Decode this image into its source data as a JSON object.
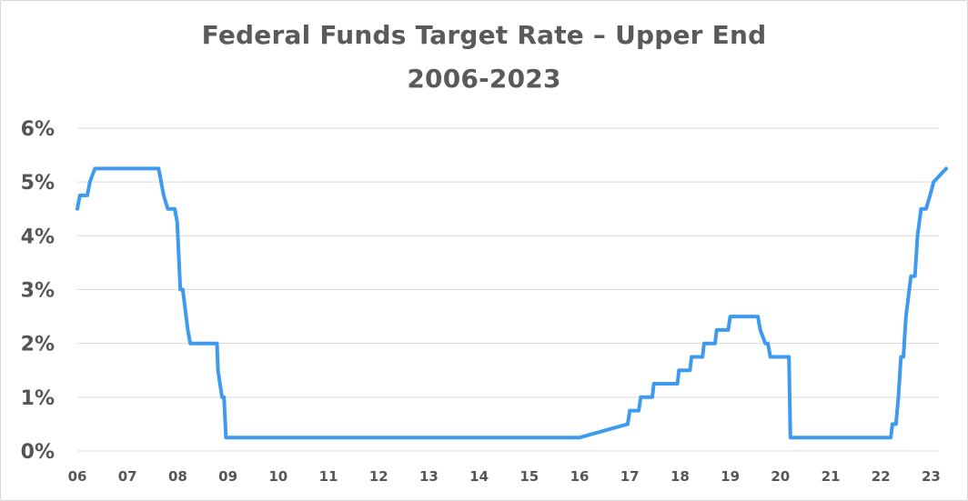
{
  "chart_data": {
    "type": "line",
    "title": "Federal Funds Target Rate – Upper End",
    "subtitle": "2006-2023",
    "xlabel": "",
    "ylabel": "",
    "ylim": [
      0,
      6
    ],
    "xlim": [
      2006,
      2023.4
    ],
    "grid": true,
    "legend": "none",
    "line_color": "#3d9aef",
    "y_ticks": [
      "0%",
      "1%",
      "2%",
      "3%",
      "4%",
      "5%",
      "6%"
    ],
    "x_ticks": [
      "06",
      "07",
      "08",
      "09",
      "10",
      "11",
      "12",
      "13",
      "14",
      "15",
      "16",
      "17",
      "18",
      "19",
      "20",
      "21",
      "22",
      "23"
    ],
    "series": [
      {
        "x": [
          2006.0,
          2006.05,
          2006.1,
          2006.2,
          2006.25,
          2006.35,
          2006.45,
          2006.55,
          2007.58,
          2007.62,
          2007.72,
          2007.8,
          2007.88,
          2007.94,
          2007.99,
          2008.05,
          2008.08,
          2008.1,
          2008.2,
          2008.25,
          2008.33,
          2008.38,
          2008.75,
          2008.78,
          2008.8,
          2008.88,
          2008.92,
          2008.96,
          2015.96,
          2016.0,
          2016.96,
          2017.0,
          2017.18,
          2017.22,
          2017.45,
          2017.48,
          2017.95,
          2017.98,
          2018.2,
          2018.23,
          2018.45,
          2018.48,
          2018.7,
          2018.73,
          2018.96,
          2019.0,
          2019.55,
          2019.6,
          2019.7,
          2019.75,
          2019.8,
          2019.85,
          2020.17,
          2020.2,
          2022.2,
          2022.23,
          2022.3,
          2022.35,
          2022.4,
          2022.45,
          2022.5,
          2022.6,
          2022.68,
          2022.73,
          2022.8,
          2022.85,
          2022.9,
          2022.98,
          2023.05,
          2023.3
        ],
        "y": [
          4.5,
          4.75,
          4.75,
          4.75,
          5.0,
          5.25,
          5.25,
          5.25,
          5.25,
          5.25,
          4.75,
          4.5,
          4.5,
          4.5,
          4.25,
          3.0,
          3.0,
          3.0,
          2.25,
          2.0,
          2.0,
          2.0,
          2.0,
          2.0,
          1.5,
          1.0,
          1.0,
          0.25,
          0.25,
          0.25,
          0.5,
          0.75,
          0.75,
          1.0,
          1.0,
          1.25,
          1.25,
          1.5,
          1.5,
          1.75,
          1.75,
          2.0,
          2.0,
          2.25,
          2.25,
          2.5,
          2.5,
          2.25,
          2.0,
          2.0,
          1.75,
          1.75,
          1.75,
          0.25,
          0.25,
          0.5,
          0.5,
          1.0,
          1.75,
          1.75,
          2.5,
          3.25,
          3.25,
          4.0,
          4.5,
          4.5,
          4.5,
          4.75,
          5.0,
          5.25
        ]
      }
    ]
  }
}
